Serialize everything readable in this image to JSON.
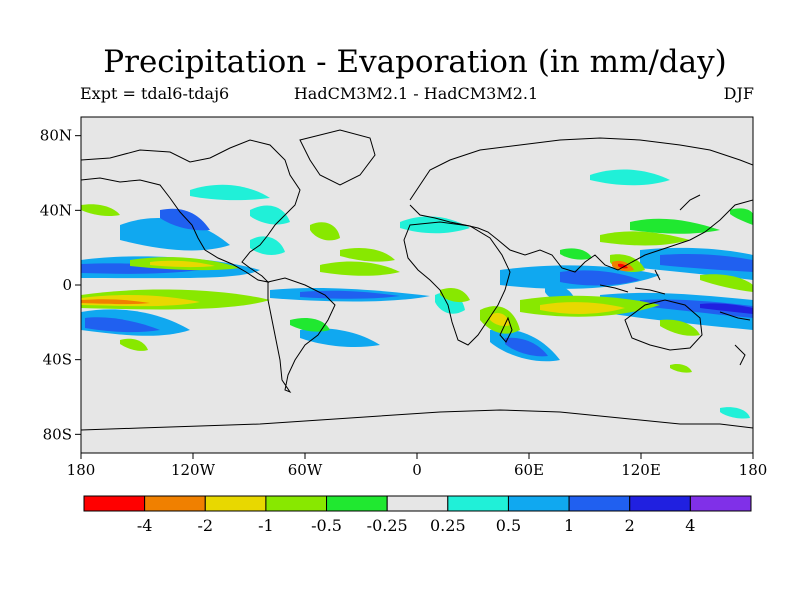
{
  "title": "Precipitation - Evaporation (in mm/day)",
  "subtitle_left": "Expt = tdal6-tdaj6",
  "subtitle_center": "HadCM3M2.1 - HadCM3M2.1",
  "subtitle_right": "DJF",
  "map": {
    "projection": "cylindrical-equidistant",
    "lon_range": [
      -180,
      180
    ],
    "lat_range": [
      -90,
      90
    ],
    "background_color": "#e6e6e6",
    "lat_ticks": [
      {
        "value": 80,
        "label": "80N"
      },
      {
        "value": 40,
        "label": "40N"
      },
      {
        "value": 0,
        "label": "0"
      },
      {
        "value": -40,
        "label": "40S"
      },
      {
        "value": -80,
        "label": "80S"
      }
    ],
    "lon_ticks": [
      {
        "value": -180,
        "label": "180"
      },
      {
        "value": -120,
        "label": "120W"
      },
      {
        "value": -60,
        "label": "60W"
      },
      {
        "value": 0,
        "label": "0"
      },
      {
        "value": 60,
        "label": "60E"
      },
      {
        "value": 120,
        "label": "120E"
      },
      {
        "value": 180,
        "label": "180"
      }
    ]
  },
  "colorbar": {
    "colors": [
      "#ff0000",
      "#f08000",
      "#e8d800",
      "#88e800",
      "#20e830",
      "#e6e6e6",
      "#20f0d8",
      "#10a8f0",
      "#2060f0",
      "#2020e0",
      "#8030e8"
    ],
    "labels": [
      "-4",
      "-2",
      "-1",
      "-0.5",
      "-0.25",
      "0.25",
      "0.5",
      "1",
      "2",
      "4"
    ]
  }
}
